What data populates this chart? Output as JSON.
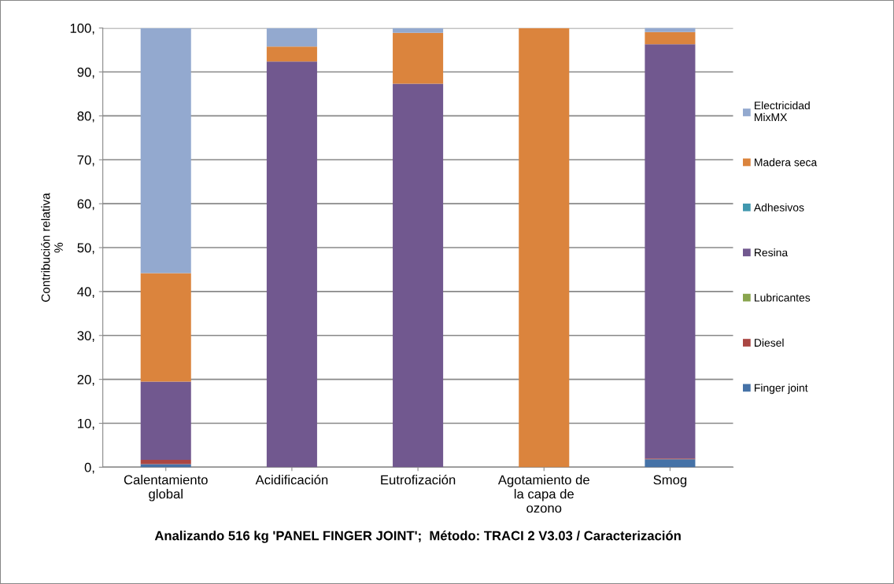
{
  "chart_data": {
    "type": "bar",
    "stacked": true,
    "xlabel": "Analizando 516 kg 'PANEL FINGER JOINT';  Método: TRACI 2 V3.03 / Caracterización",
    "ylabel": "Contribución relativa\n%",
    "categories": [
      "Calentamiento\nglobal",
      "Acidificación",
      "Eutrofización",
      "Agotamiento de\nla capa de\nozono",
      "Smog"
    ],
    "series": [
      {
        "name": "Finger joint",
        "color": "#4572a7",
        "values": [
          0.7,
          0,
          0,
          0,
          1.8
        ]
      },
      {
        "name": "Diesel",
        "color": "#aa4643",
        "values": [
          1.0,
          0,
          0,
          0,
          0.2
        ]
      },
      {
        "name": "Lubricantes",
        "color": "#89a54e",
        "values": [
          null,
          0,
          0,
          0,
          0
        ]
      },
      {
        "name": "Resina",
        "color": "#71588f",
        "values": [
          17.8,
          92.4,
          87.3,
          0,
          94.3
        ]
      },
      {
        "name": "Adhesivos",
        "color": "#4198af",
        "values": [
          0,
          0,
          0,
          0,
          0
        ]
      },
      {
        "name": "Madera seca",
        "color": "#db843d",
        "values": [
          24.7,
          3.4,
          11.6,
          100,
          2.8
        ]
      },
      {
        "name": "Electricidad\nMixMX",
        "color": "#93a9cf",
        "values": [
          55.8,
          4.2,
          1.1,
          0,
          1.0
        ]
      }
    ],
    "ylim": [
      0,
      100
    ],
    "yticks": [
      {
        "value": 0,
        "label": "0,"
      },
      {
        "value": 10,
        "label": "10,"
      },
      {
        "value": 20,
        "label": "20,"
      },
      {
        "value": 30,
        "label": "30,"
      },
      {
        "value": 40,
        "label": "40,"
      },
      {
        "value": 50,
        "label": "50,"
      },
      {
        "value": 60,
        "label": "60,"
      },
      {
        "value": 70,
        "label": "70,"
      },
      {
        "value": 80,
        "label": "80,"
      },
      {
        "value": 90,
        "label": "90,"
      },
      {
        "value": 100,
        "label": "100,"
      }
    ],
    "grid": "y",
    "legend": "right"
  }
}
